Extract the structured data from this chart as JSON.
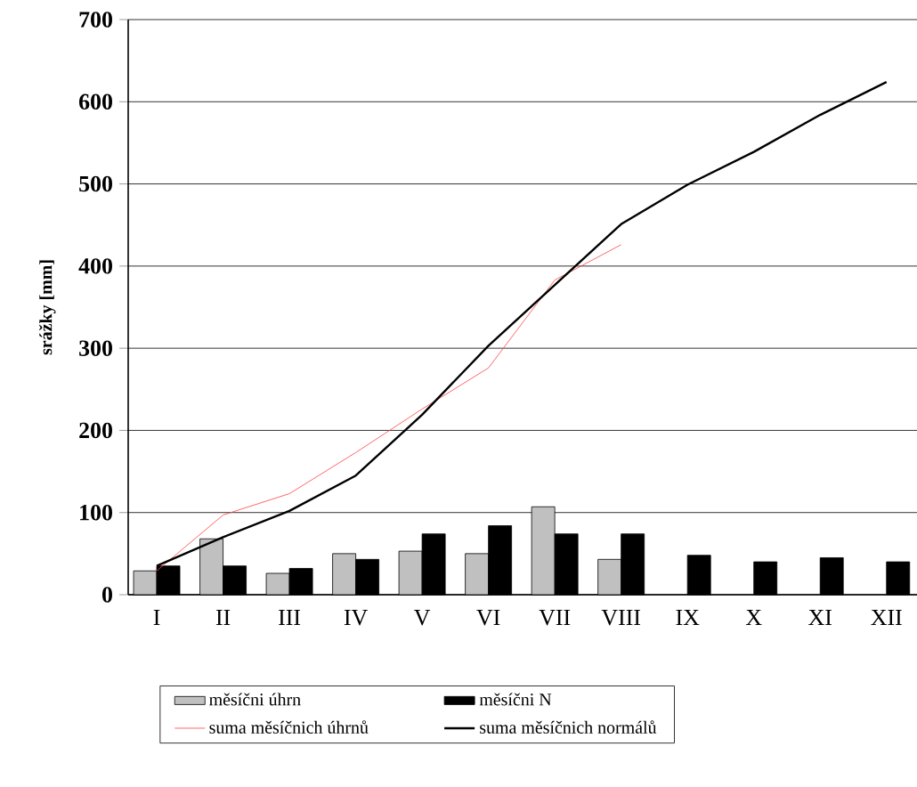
{
  "chart_data": {
    "type": "bar",
    "ylabel": "srážky [mm]",
    "categories": [
      "I",
      "II",
      "III",
      "IV",
      "V",
      "VI",
      "VII",
      "VIII",
      "IX",
      "X",
      "XI",
      "XII"
    ],
    "series": [
      {
        "name": "měsíčni úhrn",
        "color": "#c0c0c0",
        "values": [
          29,
          68,
          26,
          50,
          53,
          50,
          107,
          43,
          null,
          null,
          null,
          null
        ]
      },
      {
        "name": "měsíčni N",
        "color": "#000000",
        "values": [
          35,
          35,
          32,
          43,
          74,
          84,
          74,
          74,
          48,
          40,
          45,
          40
        ]
      },
      {
        "name": "suma měsíčnich úhrnů",
        "type": "line",
        "color": "#ff4040",
        "values": [
          29,
          97,
          123,
          173,
          226,
          276,
          383,
          426,
          null,
          null,
          null,
          null
        ]
      },
      {
        "name": "suma měsíčnich normálů",
        "type": "line",
        "color": "#000000",
        "values": [
          35,
          70,
          102,
          145,
          219,
          303,
          377,
          451,
          499,
          539,
          584,
          624
        ]
      }
    ],
    "ylim": [
      0,
      700
    ],
    "yticks": [
      0,
      100,
      200,
      300,
      400,
      500,
      600,
      700
    ],
    "grid": "y",
    "legend": "bottom"
  }
}
